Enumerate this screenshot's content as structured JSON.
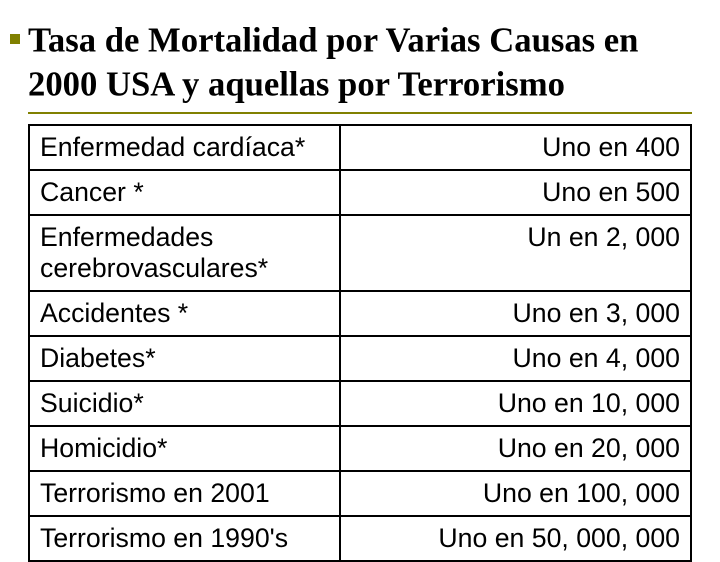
{
  "title": {
    "text": "Tasa de Mortalidad por Varias Causas en 2000 USA y aquellas por Terrorismo",
    "font_family": "Times New Roman",
    "font_weight": "bold",
    "font_size_pt": 26,
    "color": "#000000",
    "underline_color": "#808000",
    "bullet_color": "#808000"
  },
  "table": {
    "type": "table",
    "border_color": "#000000",
    "background_color": "#ffffff",
    "font_family": "Arial",
    "font_size_pt": 20,
    "columns": [
      {
        "key": "cause",
        "align": "left",
        "width_pct": 47
      },
      {
        "key": "rate",
        "align": "right",
        "width_pct": 53
      }
    ],
    "rows": [
      {
        "cause": "Enfermedad cardíaca*",
        "rate": "Uno en 400"
      },
      {
        "cause": "Cancer *",
        "rate": "Uno en 500"
      },
      {
        "cause": "Enfermedades cerebrovasculares*",
        "rate": "Un en 2, 000"
      },
      {
        "cause": "Accidentes *",
        "rate": "Uno en 3, 000"
      },
      {
        "cause": "Diabetes*",
        "rate": "Uno en 4, 000"
      },
      {
        "cause": "Suicidio*",
        "rate": "Uno en 10, 000"
      },
      {
        "cause": "Homicidio*",
        "rate": "Uno en 20, 000"
      },
      {
        "cause": "Terrorismo en 2001",
        "rate": "Uno en 100, 000"
      },
      {
        "cause": "Terrorismo en 1990's",
        "rate": "Uno en 50, 000, 000"
      }
    ]
  }
}
